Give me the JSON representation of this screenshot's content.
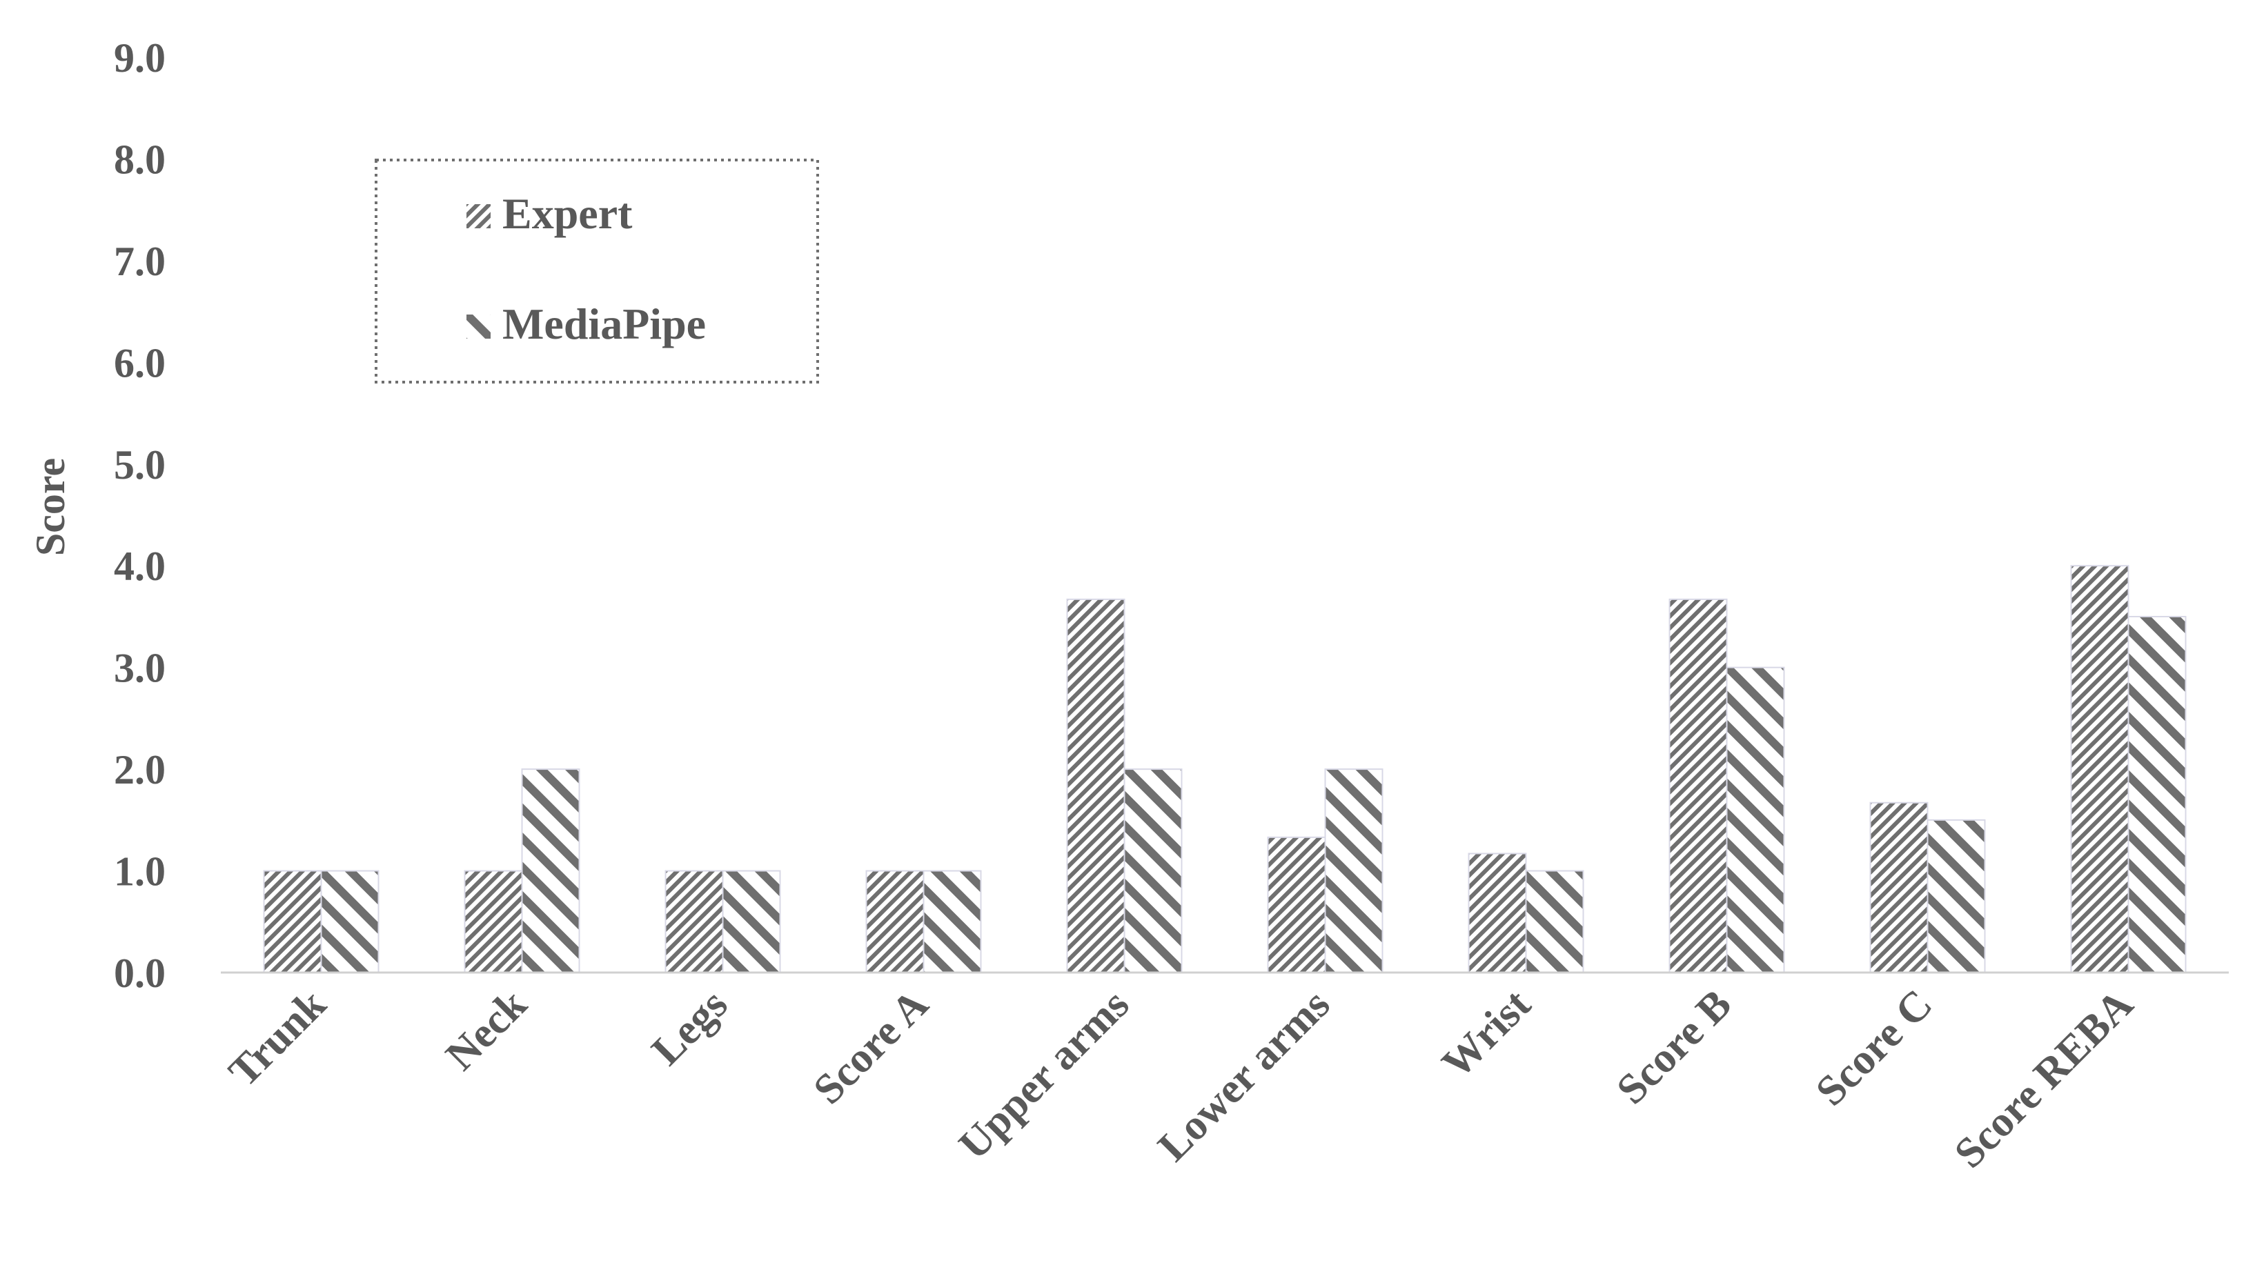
{
  "chart_data": {
    "type": "bar",
    "title": "",
    "xlabel": "",
    "ylabel": "Score",
    "ylim": [
      0,
      9
    ],
    "yticks": [
      "0.0",
      "1.0",
      "2.0",
      "3.0",
      "4.0",
      "5.0",
      "6.0",
      "7.0",
      "8.0",
      "9.0"
    ],
    "grid": false,
    "legend_position": "top-left",
    "categories": [
      "Trunk",
      "Neck",
      "Legs",
      "Score A",
      "Upper arms",
      "Lower arms",
      "Wrist",
      "Score B",
      "Score C",
      "Score REBA"
    ],
    "series": [
      {
        "name": "Expert",
        "pattern": "dense-hatch",
        "values": [
          1.0,
          1.0,
          1.0,
          1.0,
          3.67,
          1.33,
          1.17,
          3.67,
          1.67,
          4.0
        ]
      },
      {
        "name": "MediaPipe",
        "pattern": "wide-hatch",
        "values": [
          1.0,
          2.0,
          1.0,
          1.0,
          2.0,
          2.0,
          1.0,
          3.0,
          1.5,
          3.5
        ]
      }
    ]
  },
  "colors": {
    "bar_fill": "#ffffff",
    "hatch": "#6f6f6f",
    "text": "#595959",
    "axis": "#d0d0d0",
    "legend_border": "#6f6f6f"
  }
}
